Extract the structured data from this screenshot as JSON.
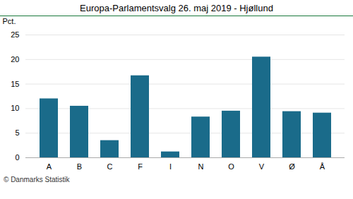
{
  "chart_data": {
    "type": "bar",
    "title": "Europa-Parlamentsvalg 26. maj 2019 - Hjøllund",
    "categories": [
      "A",
      "B",
      "C",
      "F",
      "I",
      "N",
      "O",
      "V",
      "Ø",
      "Å"
    ],
    "values": [
      12.0,
      10.5,
      3.5,
      16.7,
      1.2,
      8.3,
      9.5,
      20.5,
      9.4,
      9.1
    ],
    "color": "#1a6b8a",
    "ylabel": "Pct.",
    "ylim": [
      0,
      25
    ],
    "yticks": [
      0,
      5,
      10,
      15,
      20,
      25
    ],
    "grid": true,
    "caption": "© Danmarks Statistik"
  }
}
